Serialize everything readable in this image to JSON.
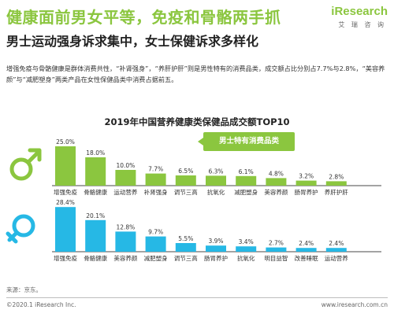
{
  "header": {
    "title": "健康面前男女平等，免疫和骨骼两手抓",
    "logo": "iResearch",
    "logo_sub": "艾 瑞 咨 询",
    "subtitle": "男士运动强身诉求集中，女士保健诉求多样化"
  },
  "description": "增强免疫与骨骼健康是群体消费共性，“补肾强身”，“养肝护肝”则是男性特有的消费品类，成交额占比分别占7.7%与2.8%，“美容养颜”与“减肥塑身”两类产品在女性保健品类中消费占据前五。",
  "callout": "男士特有消费品类",
  "colors": {
    "male": "#8bc63f",
    "female": "#26b8e5",
    "baseline": "#4a4a4a"
  },
  "icons": {
    "male": "male-symbol-icon",
    "female": "female-symbol-icon"
  },
  "chart_data": {
    "type": "bar",
    "title": "2019年中国营养健康类保健品成交额TOP10",
    "charts": [
      {
        "group": "male",
        "categories": [
          "增强免疫",
          "骨骼健康",
          "运动营养",
          "补肾强身",
          "调节三高",
          "抗氧化",
          "减肥塑身",
          "美容养颜",
          "肠胃养护",
          "养肝护肝"
        ],
        "values": [
          25.0,
          18.0,
          10.0,
          7.7,
          6.5,
          6.3,
          6.1,
          4.8,
          3.2,
          2.8
        ],
        "labels": [
          "25.0%",
          "18.0%",
          "10.0%",
          "7.7%",
          "6.5%",
          "6.3%",
          "6.1%",
          "4.8%",
          "3.2%",
          "2.8%"
        ],
        "highlighted": [
          "补肾强身",
          "养肝护肝"
        ]
      },
      {
        "group": "female",
        "categories": [
          "增强免疫",
          "骨骼健康",
          "美容养颜",
          "减肥塑身",
          "调节三高",
          "肠胃养护",
          "抗氧化",
          "明目益智",
          "改善睡眠",
          "运动营养"
        ],
        "values": [
          28.4,
          20.1,
          12.8,
          9.7,
          5.5,
          3.9,
          3.4,
          2.7,
          2.4,
          2.4
        ],
        "labels": [
          "28.4%",
          "20.1%",
          "12.8%",
          "9.7%",
          "5.5%",
          "3.9%",
          "3.4%",
          "2.7%",
          "2.4%",
          "2.4%"
        ]
      }
    ]
  },
  "footer": {
    "source": "来源：京东。",
    "copyright": "©2020.1 iResearch Inc.",
    "website": "www.iresearch.com.cn"
  }
}
